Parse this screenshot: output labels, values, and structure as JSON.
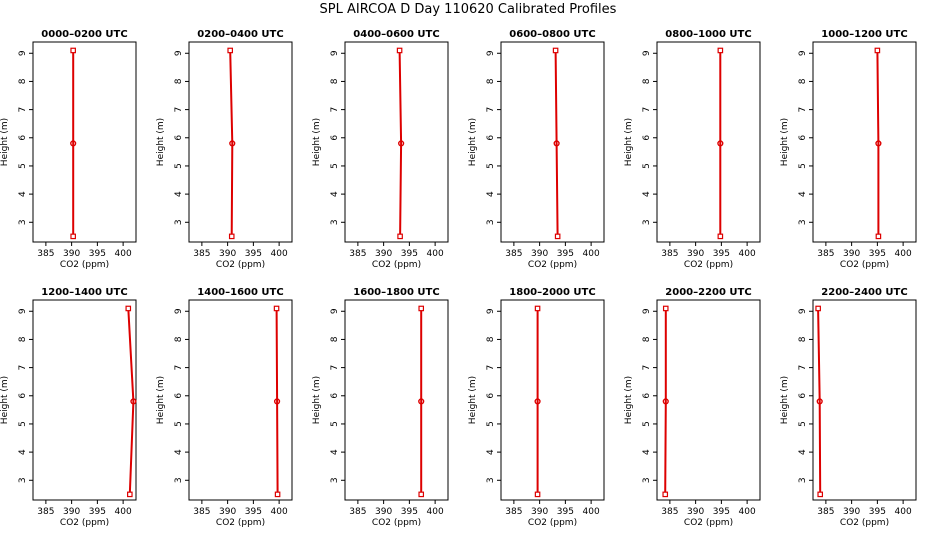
{
  "title": "SPL AIRCOA D  Day 110620  Calibrated Profiles",
  "chart_data": {
    "type": "line",
    "layout": "2 rows x 6 columns",
    "xlabel": "CO2 (ppm)",
    "ylabel": "Height (m)",
    "xlim": [
      382.5,
      402.5
    ],
    "ylim": [
      2.3,
      9.4
    ],
    "xticks": [
      385,
      390,
      395,
      400
    ],
    "yticks": [
      3,
      4,
      5,
      6,
      7,
      8,
      9
    ],
    "colors": {
      "profile": "#dd0000",
      "markers": "#dd0000",
      "axes": "#000000"
    },
    "panels": [
      {
        "title": "0000–0200 UTC",
        "points": [
          {
            "x": 390.3,
            "y": 2.5
          },
          {
            "x": 390.3,
            "y": 5.8
          },
          {
            "x": 390.3,
            "y": 9.1
          }
        ]
      },
      {
        "title": "0200–0400 UTC",
        "points": [
          {
            "x": 390.8,
            "y": 2.5
          },
          {
            "x": 390.9,
            "y": 5.8
          },
          {
            "x": 390.5,
            "y": 9.1
          }
        ]
      },
      {
        "title": "0400–0600 UTC",
        "points": [
          {
            "x": 393.2,
            "y": 2.5
          },
          {
            "x": 393.4,
            "y": 5.8
          },
          {
            "x": 393.1,
            "y": 9.1
          }
        ]
      },
      {
        "title": "0600–0800 UTC",
        "points": [
          {
            "x": 393.5,
            "y": 2.5
          },
          {
            "x": 393.3,
            "y": 5.8
          },
          {
            "x": 393.1,
            "y": 9.1
          }
        ]
      },
      {
        "title": "0800–1000 UTC",
        "points": [
          {
            "x": 394.8,
            "y": 2.5
          },
          {
            "x": 394.8,
            "y": 5.8
          },
          {
            "x": 394.8,
            "y": 9.1
          }
        ]
      },
      {
        "title": "1000–1200 UTC",
        "points": [
          {
            "x": 395.2,
            "y": 2.5
          },
          {
            "x": 395.2,
            "y": 5.8
          },
          {
            "x": 395.0,
            "y": 9.1
          }
        ]
      },
      {
        "title": "1200–1400 UTC",
        "points": [
          {
            "x": 401.3,
            "y": 2.5
          },
          {
            "x": 402.0,
            "y": 5.8
          },
          {
            "x": 401.0,
            "y": 9.1
          }
        ]
      },
      {
        "title": "1400–1600 UTC",
        "points": [
          {
            "x": 399.7,
            "y": 2.5
          },
          {
            "x": 399.6,
            "y": 5.8
          },
          {
            "x": 399.5,
            "y": 9.1
          }
        ]
      },
      {
        "title": "1600–1800 UTC",
        "points": [
          {
            "x": 397.3,
            "y": 2.5
          },
          {
            "x": 397.3,
            "y": 5.8
          },
          {
            "x": 397.3,
            "y": 9.1
          }
        ]
      },
      {
        "title": "1800–2000 UTC",
        "points": [
          {
            "x": 389.6,
            "y": 2.5
          },
          {
            "x": 389.6,
            "y": 5.8
          },
          {
            "x": 389.6,
            "y": 9.1
          }
        ]
      },
      {
        "title": "2000–2200 UTC",
        "points": [
          {
            "x": 384.1,
            "y": 2.5
          },
          {
            "x": 384.2,
            "y": 5.8
          },
          {
            "x": 384.2,
            "y": 9.1
          }
        ]
      },
      {
        "title": "2200–2400 UTC",
        "points": [
          {
            "x": 383.9,
            "y": 2.5
          },
          {
            "x": 383.8,
            "y": 5.8
          },
          {
            "x": 383.5,
            "y": 9.1
          }
        ]
      }
    ]
  }
}
